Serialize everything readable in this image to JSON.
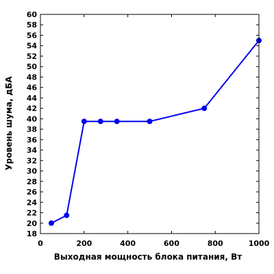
{
  "chart_data": {
    "type": "line",
    "title": "",
    "xlabel": "Выходная мощность блока питания, Вт",
    "ylabel": "Уровень шума, дБА",
    "xlim": [
      0,
      1000
    ],
    "ylim": [
      18,
      60
    ],
    "x_ticks": [
      0,
      200,
      400,
      600,
      800,
      1000
    ],
    "y_ticks": [
      18,
      20,
      22,
      24,
      26,
      28,
      30,
      32,
      34,
      36,
      38,
      40,
      42,
      44,
      46,
      48,
      50,
      52,
      54,
      56,
      58,
      60
    ],
    "grid": false,
    "legend": "none",
    "series": [
      {
        "color": "#0000ee",
        "x": [
          50,
          120,
          200,
          275,
          350,
          500,
          750,
          1000
        ],
        "y": [
          20.0,
          21.5,
          39.5,
          39.5,
          39.5,
          39.5,
          42.0,
          55.0
        ]
      }
    ]
  }
}
